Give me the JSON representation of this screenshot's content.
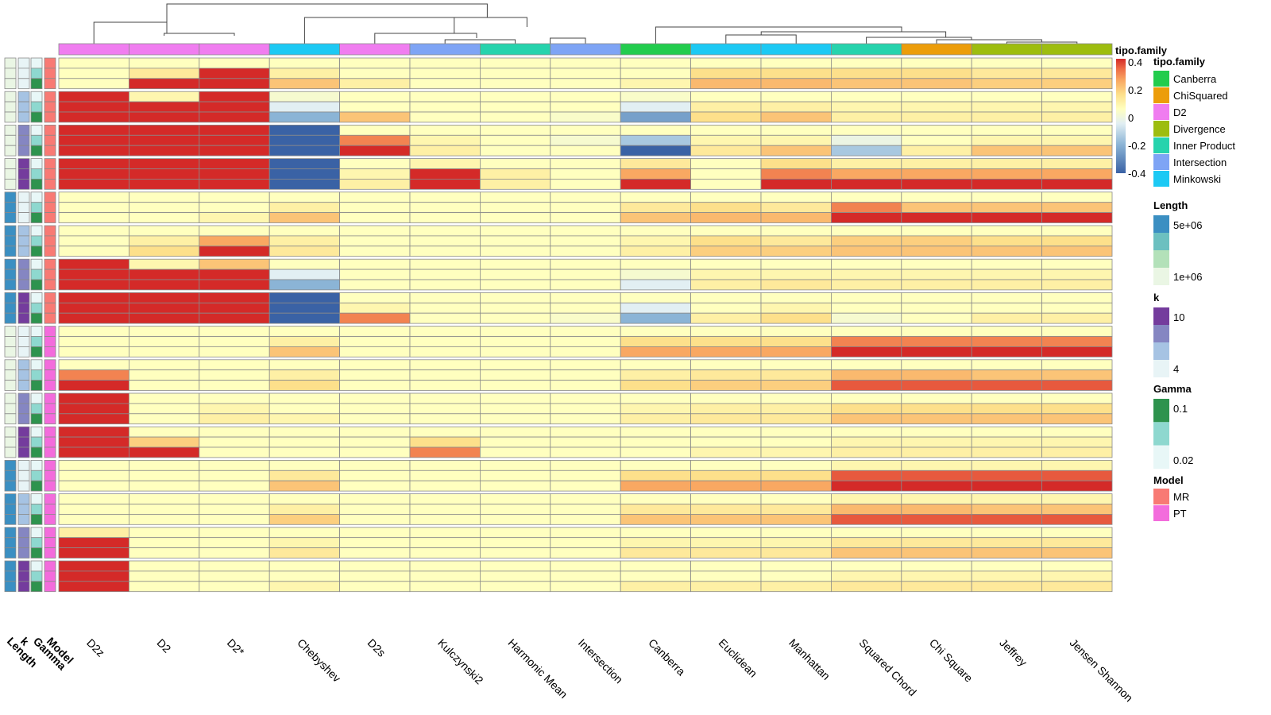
{
  "chart_data": {
    "type": "heatmap",
    "columns": [
      "D2z",
      "D2",
      "D2*",
      "Chebyshev",
      "D2s",
      "Kulczynski2",
      "Harmonic Mean",
      "Intersection",
      "Canberra",
      "Euclidean",
      "Manhattan",
      "Squared Chord",
      "Chi Square",
      "Jeffrey",
      "Jensen Shannon"
    ],
    "column_family": [
      "D2",
      "D2",
      "D2",
      "Minkowski",
      "D2",
      "Intersection",
      "Inner Product",
      "Intersection",
      "Canberra",
      "Minkowski",
      "Minkowski",
      "Inner Product",
      "ChiSquared",
      "Divergence",
      "Divergence"
    ],
    "row_annotation_labels": [
      "Length",
      "k",
      "Gamma",
      "Model"
    ],
    "column_annotation_title": "tipo.family",
    "row_groups": [
      {
        "length_level": 0,
        "k_level": 0,
        "model": "MR"
      },
      {
        "length_level": 0,
        "k_level": 1,
        "model": "MR"
      },
      {
        "length_level": 0,
        "k_level": 2,
        "model": "MR"
      },
      {
        "length_level": 0,
        "k_level": 3,
        "model": "MR"
      },
      {
        "length_level": 3,
        "k_level": 0,
        "model": "MR"
      },
      {
        "length_level": 3,
        "k_level": 1,
        "model": "MR"
      },
      {
        "length_level": 3,
        "k_level": 2,
        "model": "MR"
      },
      {
        "length_level": 3,
        "k_level": 3,
        "model": "MR"
      },
      {
        "length_level": 0,
        "k_level": 0,
        "model": "PT"
      },
      {
        "length_level": 0,
        "k_level": 1,
        "model": "PT"
      },
      {
        "length_level": 0,
        "k_level": 2,
        "model": "PT"
      },
      {
        "length_level": 0,
        "k_level": 3,
        "model": "PT"
      },
      {
        "length_level": 3,
        "k_level": 0,
        "model": "PT"
      },
      {
        "length_level": 3,
        "k_level": 1,
        "model": "PT"
      },
      {
        "length_level": 3,
        "k_level": 2,
        "model": "PT"
      },
      {
        "length_level": 3,
        "k_level": 3,
        "model": "PT"
      }
    ],
    "gamma_levels_per_group": [
      0,
      1,
      2
    ],
    "values": [
      [
        0.05,
        0.05,
        0.05,
        0.05,
        0.05,
        0.05,
        0.05,
        0.05,
        0.05,
        0.05,
        0.05,
        0.05,
        0.05,
        0.05,
        0.05
      ],
      [
        0.05,
        0.12,
        0.4,
        0.1,
        0.05,
        0.05,
        0.05,
        0.05,
        0.05,
        0.15,
        0.15,
        0.15,
        0.15,
        0.12,
        0.12
      ],
      [
        0.05,
        0.4,
        0.4,
        0.2,
        0.1,
        0.05,
        0.05,
        0.05,
        0.08,
        0.22,
        0.22,
        0.2,
        0.2,
        0.18,
        0.18
      ],
      [
        0.4,
        0.08,
        0.4,
        0.02,
        0.05,
        0.05,
        0.05,
        0.05,
        0.03,
        0.05,
        0.05,
        0.05,
        0.05,
        0.05,
        0.05
      ],
      [
        0.4,
        0.4,
        0.4,
        -0.05,
        0.05,
        0.05,
        0.05,
        0.05,
        -0.05,
        0.1,
        0.1,
        0.08,
        0.08,
        0.08,
        0.08
      ],
      [
        0.4,
        0.4,
        0.4,
        -0.2,
        0.2,
        0.05,
        0.05,
        0.03,
        -0.25,
        0.15,
        0.2,
        0.1,
        0.1,
        0.1,
        0.1
      ],
      [
        0.4,
        0.4,
        0.4,
        -0.4,
        0.05,
        0.05,
        0.05,
        0.05,
        0.05,
        0.05,
        0.05,
        0.05,
        0.05,
        0.05,
        0.05
      ],
      [
        0.4,
        0.4,
        0.4,
        -0.4,
        0.3,
        0.08,
        0.05,
        0.02,
        -0.15,
        0.08,
        0.08,
        -0.02,
        0.05,
        0.08,
        0.08
      ],
      [
        0.4,
        0.4,
        0.4,
        -0.4,
        0.4,
        0.1,
        0.05,
        0.05,
        -0.4,
        0.12,
        0.2,
        -0.15,
        0.1,
        0.2,
        0.2
      ],
      [
        0.4,
        0.4,
        0.4,
        -0.4,
        0.05,
        0.08,
        0.05,
        0.05,
        0.12,
        0.05,
        0.15,
        0.1,
        0.1,
        0.1,
        0.1
      ],
      [
        0.4,
        0.4,
        0.4,
        -0.4,
        0.08,
        0.4,
        0.1,
        0.05,
        0.25,
        0.05,
        0.3,
        0.25,
        0.25,
        0.25,
        0.25
      ],
      [
        0.4,
        0.4,
        0.4,
        -0.4,
        0.1,
        0.4,
        0.1,
        0.05,
        0.4,
        0.05,
        0.4,
        0.4,
        0.4,
        0.4,
        0.4
      ],
      [
        0.05,
        0.05,
        0.05,
        0.05,
        0.05,
        0.05,
        0.05,
        0.05,
        0.05,
        0.05,
        0.05,
        0.05,
        0.05,
        0.05,
        0.05
      ],
      [
        0.05,
        0.05,
        0.05,
        0.1,
        0.05,
        0.05,
        0.05,
        0.05,
        0.12,
        0.15,
        0.12,
        0.3,
        0.2,
        0.2,
        0.2
      ],
      [
        0.05,
        0.05,
        0.08,
        0.2,
        0.05,
        0.05,
        0.05,
        0.05,
        0.2,
        0.22,
        0.22,
        0.4,
        0.4,
        0.4,
        0.4
      ],
      [
        0.05,
        0.05,
        0.05,
        0.05,
        0.05,
        0.05,
        0.05,
        0.05,
        0.05,
        0.05,
        0.05,
        0.05,
        0.05,
        0.05,
        0.05
      ],
      [
        0.05,
        0.1,
        0.25,
        0.1,
        0.05,
        0.05,
        0.05,
        0.05,
        0.08,
        0.15,
        0.12,
        0.18,
        0.18,
        0.15,
        0.15
      ],
      [
        0.05,
        0.15,
        0.4,
        0.12,
        0.05,
        0.05,
        0.05,
        0.05,
        0.1,
        0.18,
        0.18,
        0.2,
        0.2,
        0.2,
        0.2
      ],
      [
        0.4,
        0.08,
        0.2,
        0.05,
        0.05,
        0.05,
        0.05,
        0.05,
        0.05,
        0.05,
        0.05,
        0.05,
        0.05,
        0.05,
        0.05
      ],
      [
        0.4,
        0.4,
        0.4,
        -0.05,
        0.05,
        0.05,
        0.05,
        0.05,
        0.02,
        0.08,
        0.08,
        0.08,
        0.08,
        0.08,
        0.08
      ],
      [
        0.4,
        0.4,
        0.4,
        -0.2,
        0.05,
        0.05,
        0.05,
        0.05,
        -0.05,
        0.1,
        0.12,
        0.1,
        0.1,
        0.1,
        0.1
      ],
      [
        0.4,
        0.4,
        0.4,
        -0.4,
        0.05,
        0.05,
        0.05,
        0.05,
        0.05,
        0.05,
        0.05,
        0.05,
        0.05,
        0.05,
        0.05
      ],
      [
        0.4,
        0.4,
        0.4,
        -0.4,
        0.08,
        0.05,
        0.05,
        0.05,
        -0.05,
        0.05,
        0.08,
        0.05,
        0.05,
        0.05,
        0.05
      ],
      [
        0.4,
        0.4,
        0.4,
        -0.4,
        0.3,
        0.05,
        0.05,
        0.03,
        -0.2,
        0.1,
        0.15,
        0.02,
        0.05,
        0.1,
        0.1
      ],
      [
        0.05,
        0.05,
        0.05,
        0.05,
        0.05,
        0.05,
        0.05,
        0.05,
        0.05,
        0.05,
        0.05,
        0.05,
        0.05,
        0.05,
        0.05
      ],
      [
        0.05,
        0.05,
        0.05,
        0.1,
        0.05,
        0.05,
        0.05,
        0.05,
        0.15,
        0.15,
        0.15,
        0.3,
        0.3,
        0.3,
        0.3
      ],
      [
        0.05,
        0.05,
        0.05,
        0.2,
        0.05,
        0.05,
        0.05,
        0.05,
        0.25,
        0.25,
        0.25,
        0.4,
        0.4,
        0.4,
        0.4
      ],
      [
        0.05,
        0.05,
        0.05,
        0.05,
        0.05,
        0.05,
        0.05,
        0.05,
        0.05,
        0.05,
        0.05,
        0.05,
        0.05,
        0.05,
        0.05
      ],
      [
        0.3,
        0.05,
        0.05,
        0.1,
        0.05,
        0.05,
        0.05,
        0.05,
        0.1,
        0.12,
        0.12,
        0.22,
        0.22,
        0.2,
        0.2
      ],
      [
        0.4,
        0.05,
        0.05,
        0.15,
        0.05,
        0.05,
        0.05,
        0.05,
        0.15,
        0.18,
        0.18,
        0.35,
        0.35,
        0.35,
        0.35
      ],
      [
        0.4,
        0.05,
        0.05,
        0.05,
        0.05,
        0.05,
        0.05,
        0.05,
        0.05,
        0.05,
        0.05,
        0.05,
        0.05,
        0.05,
        0.05
      ],
      [
        0.4,
        0.05,
        0.08,
        0.05,
        0.05,
        0.05,
        0.05,
        0.05,
        0.08,
        0.1,
        0.1,
        0.15,
        0.15,
        0.15,
        0.15
      ],
      [
        0.4,
        0.05,
        0.1,
        0.08,
        0.05,
        0.05,
        0.05,
        0.05,
        0.1,
        0.12,
        0.12,
        0.2,
        0.2,
        0.2,
        0.2
      ],
      [
        0.4,
        0.05,
        0.05,
        0.05,
        0.05,
        0.05,
        0.05,
        0.05,
        0.05,
        0.05,
        0.05,
        0.05,
        0.05,
        0.05,
        0.05
      ],
      [
        0.4,
        0.18,
        0.05,
        0.05,
        0.05,
        0.15,
        0.05,
        0.05,
        0.05,
        0.05,
        0.05,
        0.08,
        0.08,
        0.08,
        0.08
      ],
      [
        0.4,
        0.4,
        0.05,
        0.05,
        0.05,
        0.3,
        0.05,
        0.05,
        0.05,
        0.08,
        0.08,
        0.1,
        0.1,
        0.1,
        0.1
      ],
      [
        0.05,
        0.05,
        0.05,
        0.05,
        0.05,
        0.05,
        0.05,
        0.05,
        0.05,
        0.05,
        0.05,
        0.08,
        0.08,
        0.08,
        0.08
      ],
      [
        0.05,
        0.05,
        0.05,
        0.12,
        0.05,
        0.05,
        0.05,
        0.05,
        0.15,
        0.15,
        0.15,
        0.35,
        0.35,
        0.35,
        0.35
      ],
      [
        0.05,
        0.05,
        0.05,
        0.2,
        0.05,
        0.05,
        0.05,
        0.05,
        0.25,
        0.25,
        0.25,
        0.4,
        0.4,
        0.4,
        0.4
      ],
      [
        0.05,
        0.05,
        0.05,
        0.05,
        0.05,
        0.05,
        0.05,
        0.05,
        0.05,
        0.05,
        0.05,
        0.08,
        0.08,
        0.08,
        0.08
      ],
      [
        0.05,
        0.05,
        0.05,
        0.1,
        0.05,
        0.05,
        0.05,
        0.05,
        0.12,
        0.12,
        0.12,
        0.22,
        0.22,
        0.2,
        0.2
      ],
      [
        0.05,
        0.05,
        0.05,
        0.18,
        0.05,
        0.05,
        0.05,
        0.05,
        0.2,
        0.2,
        0.2,
        0.35,
        0.35,
        0.35,
        0.35
      ],
      [
        0.1,
        0.05,
        0.05,
        0.05,
        0.05,
        0.05,
        0.05,
        0.05,
        0.05,
        0.05,
        0.05,
        0.05,
        0.05,
        0.05,
        0.05
      ],
      [
        0.4,
        0.05,
        0.05,
        0.08,
        0.05,
        0.05,
        0.05,
        0.05,
        0.08,
        0.08,
        0.08,
        0.12,
        0.12,
        0.12,
        0.12
      ],
      [
        0.4,
        0.05,
        0.05,
        0.12,
        0.05,
        0.05,
        0.05,
        0.05,
        0.12,
        0.12,
        0.12,
        0.2,
        0.2,
        0.2,
        0.2
      ],
      [
        0.4,
        0.05,
        0.05,
        0.05,
        0.05,
        0.05,
        0.05,
        0.05,
        0.05,
        0.05,
        0.05,
        0.05,
        0.05,
        0.05,
        0.05
      ],
      [
        0.4,
        0.05,
        0.05,
        0.05,
        0.05,
        0.05,
        0.05,
        0.05,
        0.05,
        0.05,
        0.05,
        0.08,
        0.08,
        0.08,
        0.08
      ],
      [
        0.4,
        0.05,
        0.05,
        0.08,
        0.05,
        0.05,
        0.05,
        0.05,
        0.1,
        0.1,
        0.1,
        0.12,
        0.12,
        0.12,
        0.12
      ]
    ],
    "color_scale": {
      "min": -0.4,
      "max": 0.4,
      "stops": [
        {
          "v": -0.4,
          "c": "#3a62a5"
        },
        {
          "v": -0.2,
          "c": "#8bb4d6"
        },
        {
          "v": -0.05,
          "c": "#e2eff3"
        },
        {
          "v": 0.05,
          "c": "#ffffbf"
        },
        {
          "v": 0.15,
          "c": "#fde08b"
        },
        {
          "v": 0.25,
          "c": "#f9a862"
        },
        {
          "v": 0.33,
          "c": "#ee6c47"
        },
        {
          "v": 0.4,
          "c": "#d42a28"
        }
      ]
    },
    "family_colors": {
      "Canberra": "#22cc4d",
      "ChiSquared": "#ec9d0a",
      "D2": "#f07df0",
      "Divergence": "#9dbd0f",
      "Inner Product": "#26d3ad",
      "Intersection": "#7ea4f5",
      "Minkowski": "#1cc9f4"
    },
    "length_colors": [
      "#eaf6e4",
      "#b3e1b9",
      "#6cc0c0",
      "#3b8fc2"
    ],
    "k_colors": [
      "#e8f4f6",
      "#a6c3e3",
      "#8586c2",
      "#743c9d"
    ],
    "gamma_colors": [
      "#e8f7f7",
      "#8ed8cf",
      "#2e934e"
    ],
    "model_colors": {
      "MR": "#f87a74",
      "PT": "#f36cdc"
    },
    "legends": {
      "scale": {
        "title": "tipo.family",
        "ticks": [
          "0.4",
          "0.2",
          "0",
          "-0.2",
          "-0.4"
        ]
      },
      "family": {
        "title": "tipo.family",
        "items": [
          "Canberra",
          "ChiSquared",
          "D2",
          "Divergence",
          "Inner Product",
          "Intersection",
          "Minkowski"
        ]
      },
      "length": {
        "title": "Length",
        "ticks": [
          "5e+06",
          "1e+06"
        ]
      },
      "k": {
        "title": "k",
        "ticks": [
          "10",
          "4"
        ]
      },
      "gamma": {
        "title": "Gamma",
        "ticks": [
          "0.1",
          "0.02"
        ]
      },
      "model": {
        "title": "Model",
        "items": [
          "MR",
          "PT"
        ]
      }
    },
    "title": "",
    "xlabel": "",
    "ylabel": ""
  }
}
